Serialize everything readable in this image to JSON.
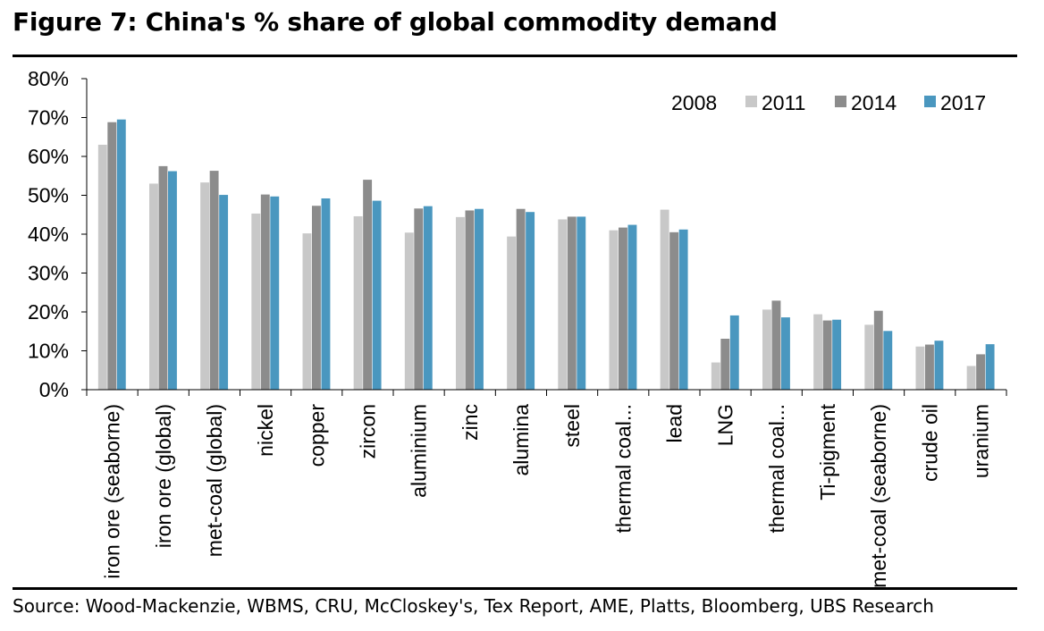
{
  "title": "Figure 7: China's % share of global commodity demand",
  "source": "Source:  Wood-Mackenzie, WBMS, CRU, McCloskey's, Tex Report, AME, Platts, Bloomberg, UBS Research",
  "chart_data": {
    "type": "bar",
    "title": "Figure 7: China's % share of global commodity demand",
    "xlabel": "",
    "ylabel": "",
    "ylim": [
      0,
      80
    ],
    "yticks": [
      "0%",
      "10%",
      "20%",
      "30%",
      "40%",
      "50%",
      "60%",
      "70%",
      "80%"
    ],
    "legend_position": "top-right",
    "grid": false,
    "categories": [
      "iron ore (seaborne)",
      "iron ore (global)",
      "met-coal (global)",
      "nickel",
      "copper",
      "zircon",
      "aluminium",
      "zinc",
      "alumina",
      "steel",
      "thermal coal...",
      "lead",
      "LNG",
      "thermal coal...",
      "Ti-pigment",
      "met-coal (seaborne)",
      "crude oil",
      "uranium"
    ],
    "series": [
      {
        "name": "2008",
        "color": "#ffffff",
        "values": [
          null,
          null,
          null,
          null,
          null,
          null,
          null,
          null,
          null,
          null,
          null,
          null,
          null,
          null,
          null,
          null,
          null,
          null
        ]
      },
      {
        "name": "2011",
        "color": "#c8c8c8",
        "values": [
          63,
          53,
          53.3,
          45.3,
          40.2,
          44.6,
          40.4,
          44.4,
          39.4,
          43.8,
          41,
          46.3,
          7,
          20.6,
          19.4,
          16.7,
          11.1,
          6.1
        ]
      },
      {
        "name": "2014",
        "color": "#8c8c8c",
        "values": [
          68.8,
          57.5,
          56.3,
          50.2,
          47.3,
          54,
          46.6,
          46.1,
          46.5,
          44.5,
          41.7,
          40.5,
          13.1,
          22.9,
          17.8,
          20.3,
          11.6,
          9.1
        ]
      },
      {
        "name": "2017",
        "color": "#4a97bf",
        "values": [
          69.5,
          56.2,
          50.1,
          49.7,
          49.2,
          48.6,
          47.2,
          46.5,
          45.7,
          44.5,
          42.4,
          41.2,
          19.1,
          18.6,
          18,
          15.1,
          12.6,
          11.7
        ]
      }
    ]
  }
}
